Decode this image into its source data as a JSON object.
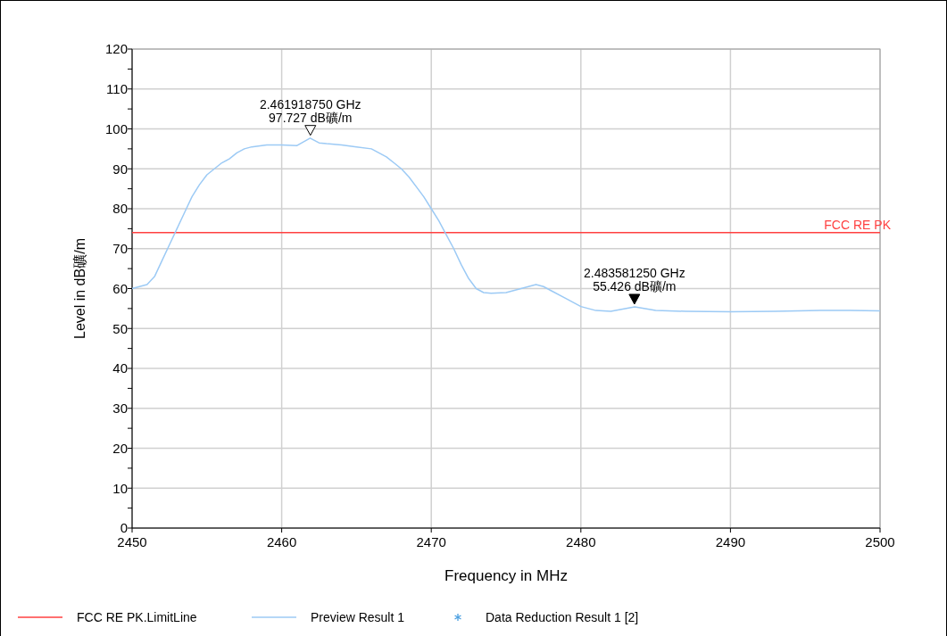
{
  "chart_data": {
    "type": "line",
    "xlabel": "Frequency in MHz",
    "ylabel": "Level in dB礦/m",
    "xlim": [
      2450,
      2500
    ],
    "xticks": [
      2450,
      2460,
      2470,
      2480,
      2490,
      2500
    ],
    "ylim": [
      0,
      120
    ],
    "yticks": [
      0,
      {
        "value": 5,
        "label": null
      },
      10,
      {
        "value": 15,
        "label": null
      },
      20,
      {
        "value": 25,
        "label": null
      },
      30,
      {
        "value": 35,
        "label": null
      },
      40,
      {
        "value": 45,
        "label": null
      },
      50,
      {
        "value": 55,
        "label": null
      },
      60,
      {
        "value": 65,
        "label": null
      },
      70,
      {
        "value": 75,
        "label": null
      },
      80,
      {
        "value": 85,
        "label": null
      },
      90,
      {
        "value": 95,
        "label": null
      },
      100,
      {
        "value": 105,
        "label": null
      },
      110,
      {
        "value": 115,
        "label": null
      },
      120
    ],
    "grid": true,
    "legend": "bottom",
    "series": [
      {
        "name": "FCC RE PK.LimitLine",
        "color": "#ff4040",
        "x": [
          2450,
          2500
        ],
        "values": [
          74,
          74
        ]
      },
      {
        "name": "Preview Result 1",
        "color": "#9ccaf5",
        "x": [
          2450,
          2451,
          2451.5,
          2452,
          2452.5,
          2453,
          2453.5,
          2454,
          2454.5,
          2455,
          2455.5,
          2456,
          2456.5,
          2457,
          2457.5,
          2458,
          2459,
          2460,
          2461,
          2461.9,
          2462.5,
          2463,
          2464,
          2465,
          2466,
          2466.5,
          2467,
          2467.5,
          2468,
          2468.5,
          2469,
          2469.5,
          2470,
          2470.5,
          2471,
          2471.5,
          2472,
          2472.5,
          2473,
          2473.5,
          2474,
          2475,
          2476,
          2477,
          2477.5,
          2478,
          2479,
          2480,
          2481,
          2482,
          2483.6,
          2485,
          2487,
          2490,
          2493,
          2496,
          2498,
          2500
        ],
        "values": [
          60,
          61,
          63,
          67,
          71,
          75,
          79,
          83,
          86,
          88.5,
          90,
          91.5,
          92.5,
          94,
          95,
          95.5,
          96,
          96,
          95.8,
          97.7,
          96.5,
          96.3,
          96,
          95.5,
          95,
          94,
          93,
          91.5,
          90,
          88,
          85.5,
          83,
          80,
          77,
          73.5,
          70,
          66,
          62.5,
          60,
          59,
          58.8,
          59,
          60,
          61,
          60.5,
          59.5,
          57.5,
          55.5,
          54.5,
          54.3,
          55.4,
          54.5,
          54.3,
          54.2,
          54.3,
          54.5,
          54.5,
          54.4
        ]
      },
      {
        "name": "Data Reduction Result 1 [2]",
        "color": "#4a9fe0",
        "type": "scatter",
        "marker": "star"
      }
    ],
    "annotations": [
      {
        "text": "2.461918750 GHz\n97.727 dB礦/m",
        "x": 2461.91875,
        "y": 97.727
      },
      {
        "text": "2.483581250 GHz\n55.426 dB礦/m",
        "x": 2483.58125,
        "y": 55.426
      },
      {
        "text": "FCC RE PK",
        "x": 2500,
        "y": 74
      }
    ]
  }
}
